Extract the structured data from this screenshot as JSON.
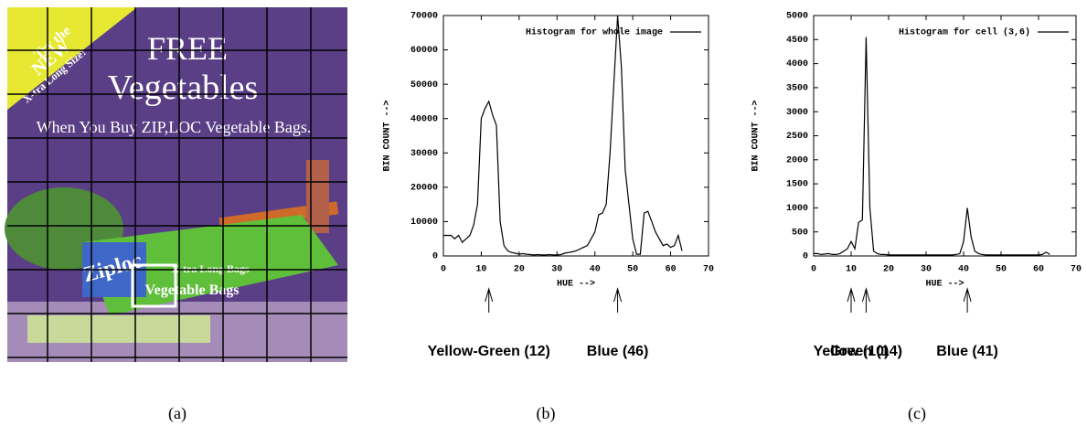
{
  "image": {
    "banner": [
      "Try the",
      "NEW",
      "X-tra Long Size!"
    ],
    "title": "FREE",
    "subtitle": "Vegetables",
    "tagline": "When You Buy ZIP,LOC Vegetable Bags.",
    "box_brand": "Ziploc",
    "box_size": "X-tra Long Bags",
    "box_name": "Vegetable Bags"
  },
  "captions": [
    "(a)",
    "(b)",
    "(c)"
  ],
  "chart_data": [
    {
      "type": "line",
      "xlabel": "HUE -->",
      "ylabel": "BIN COUNT -->",
      "x": [
        0,
        1,
        2,
        3,
        4,
        5,
        6,
        7,
        8,
        9,
        10,
        11,
        12,
        13,
        14,
        15,
        16,
        17,
        18,
        19,
        20,
        21,
        22,
        23,
        24,
        25,
        26,
        27,
        28,
        29,
        30,
        31,
        32,
        33,
        34,
        35,
        36,
        37,
        38,
        39,
        40,
        41,
        42,
        43,
        44,
        45,
        46,
        47,
        48,
        49,
        50,
        51,
        52,
        53,
        54,
        55,
        56,
        57,
        58,
        59,
        60,
        61,
        62,
        63
      ],
      "series": [
        {
          "name": "Histogram for whole image",
          "color": "#000000",
          "values": [
            6000,
            6000,
            6000,
            5000,
            6000,
            4000,
            5000,
            6000,
            9000,
            15000,
            40000,
            43000,
            45000,
            41000,
            38000,
            10000,
            3000,
            1500,
            1000,
            800,
            500,
            700,
            500,
            400,
            300,
            400,
            300,
            300,
            400,
            300,
            300,
            400,
            800,
            1000,
            1200,
            1500,
            2000,
            2500,
            3000,
            5000,
            7000,
            12000,
            12500,
            15000,
            30000,
            50000,
            70000,
            55000,
            25000,
            15000,
            5000,
            500,
            500,
            12500,
            13000,
            10000,
            7000,
            5000,
            3000,
            3500,
            2500,
            3000,
            6000,
            1500
          ]
        }
      ],
      "xlim": [
        0,
        70
      ],
      "xticks": [
        0,
        10,
        20,
        30,
        40,
        50,
        60,
        70
      ],
      "ylim": [
        0,
        70000
      ],
      "yticks": [
        0,
        10000,
        20000,
        30000,
        40000,
        50000,
        60000,
        70000
      ],
      "legend": "upper right",
      "annotations": [
        {
          "x": 12,
          "label": "Yellow-Green (12)"
        },
        {
          "x": 46,
          "label": "Blue (46)"
        }
      ]
    },
    {
      "type": "line",
      "xlabel": "HUE -->",
      "ylabel": "BIN COUNT -->",
      "x": [
        0,
        1,
        2,
        3,
        4,
        5,
        6,
        7,
        8,
        9,
        10,
        11,
        12,
        13,
        14,
        15,
        16,
        17,
        18,
        19,
        20,
        21,
        22,
        23,
        24,
        25,
        26,
        27,
        28,
        29,
        30,
        31,
        32,
        33,
        34,
        35,
        36,
        37,
        38,
        39,
        40,
        41,
        42,
        43,
        44,
        45,
        46,
        47,
        48,
        49,
        50,
        51,
        52,
        53,
        54,
        55,
        56,
        57,
        58,
        59,
        60,
        61,
        62,
        63
      ],
      "series": [
        {
          "name": "Histogram for cell (3,6)",
          "color": "#000000",
          "values": [
            50,
            50,
            30,
            40,
            50,
            30,
            30,
            50,
            100,
            150,
            300,
            150,
            700,
            750,
            4550,
            1000,
            100,
            50,
            30,
            30,
            20,
            20,
            20,
            20,
            20,
            20,
            20,
            20,
            20,
            20,
            20,
            20,
            20,
            20,
            20,
            20,
            20,
            20,
            30,
            50,
            300,
            1000,
            400,
            100,
            50,
            30,
            20,
            20,
            20,
            20,
            20,
            20,
            20,
            20,
            20,
            20,
            20,
            20,
            20,
            20,
            20,
            30,
            80,
            30
          ]
        }
      ],
      "xlim": [
        0,
        70
      ],
      "xticks": [
        0,
        10,
        20,
        30,
        40,
        50,
        60,
        70
      ],
      "ylim": [
        0,
        5000
      ],
      "yticks": [
        0,
        500,
        1000,
        1500,
        2000,
        2500,
        3000,
        3500,
        4000,
        4500,
        5000
      ],
      "legend": "upper right",
      "annotations": [
        {
          "x": 10,
          "label": "Yellow (10)"
        },
        {
          "x": 14,
          "label": "Green (14)"
        },
        {
          "x": 41,
          "label": "Blue (41)"
        }
      ]
    }
  ]
}
